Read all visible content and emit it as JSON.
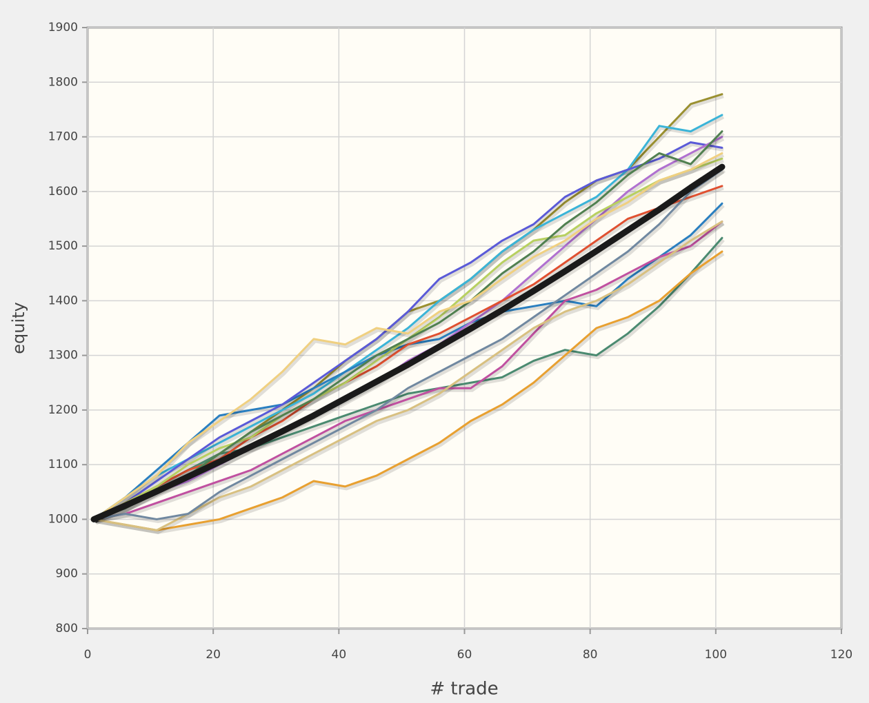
{
  "chart_data": {
    "type": "line",
    "xlabel": "# trade",
    "ylabel": "equity",
    "xlim": [
      0,
      120
    ],
    "xticks": [
      0,
      20,
      40,
      60,
      80,
      100,
      120
    ],
    "ylim": [
      800,
      1900
    ],
    "yticks": [
      800,
      900,
      1000,
      1100,
      1200,
      1300,
      1400,
      1500,
      1600,
      1700,
      1800,
      1900
    ],
    "grid": true,
    "x": [
      1,
      6,
      11,
      16,
      21,
      26,
      31,
      36,
      41,
      46,
      51,
      56,
      61,
      66,
      71,
      76,
      81,
      86,
      91,
      96,
      101
    ],
    "series": [
      {
        "color": "#9a9030",
        "linewidth": 3,
        "values": [
          1000,
          1030,
          1060,
          1090,
          1120,
          1160,
          1200,
          1240,
          1290,
          1330,
          1380,
          1400,
          1440,
          1490,
          1530,
          1580,
          1620,
          1640,
          1700,
          1760,
          1778
        ]
      },
      {
        "color": "#3ab4d8",
        "linewidth": 3,
        "values": [
          1000,
          1040,
          1080,
          1110,
          1140,
          1170,
          1200,
          1230,
          1270,
          1310,
          1350,
          1400,
          1440,
          1490,
          1530,
          1560,
          1590,
          1640,
          1720,
          1710,
          1740
        ]
      },
      {
        "color": "#2a7fc0",
        "linewidth": 3,
        "values": [
          1000,
          1040,
          1090,
          1140,
          1190,
          1200,
          1210,
          1240,
          1270,
          1300,
          1320,
          1330,
          1360,
          1380,
          1390,
          1400,
          1390,
          1440,
          1480,
          1520,
          1578
        ]
      },
      {
        "color": "#5a5ad8",
        "linewidth": 3,
        "values": [
          1000,
          1030,
          1070,
          1110,
          1150,
          1180,
          1210,
          1250,
          1290,
          1330,
          1380,
          1440,
          1470,
          1510,
          1540,
          1590,
          1620,
          1640,
          1660,
          1690,
          1680
        ]
      },
      {
        "color": "#4a8a70",
        "linewidth": 3,
        "values": [
          1000,
          1020,
          1060,
          1090,
          1120,
          1130,
          1150,
          1170,
          1190,
          1210,
          1230,
          1240,
          1250,
          1260,
          1290,
          1310,
          1300,
          1340,
          1390,
          1450,
          1515
        ]
      },
      {
        "color": "#e8a030",
        "linewidth": 3,
        "values": [
          1000,
          990,
          980,
          990,
          1000,
          1020,
          1040,
          1070,
          1060,
          1080,
          1110,
          1140,
          1180,
          1210,
          1250,
          1300,
          1350,
          1370,
          1400,
          1450,
          1490
        ]
      },
      {
        "color": "#c050a0",
        "linewidth": 3,
        "values": [
          1000,
          1010,
          1030,
          1050,
          1070,
          1090,
          1120,
          1150,
          1180,
          1200,
          1220,
          1240,
          1240,
          1280,
          1340,
          1400,
          1420,
          1450,
          1480,
          1500,
          1545
        ]
      },
      {
        "color": "#b070d0",
        "linewidth": 3,
        "values": [
          1000,
          1020,
          1050,
          1070,
          1100,
          1130,
          1160,
          1190,
          1220,
          1250,
          1290,
          1320,
          1360,
          1400,
          1450,
          1500,
          1550,
          1600,
          1640,
          1670,
          1700
        ]
      },
      {
        "color": "#e05030",
        "linewidth": 3,
        "values": [
          1000,
          1030,
          1060,
          1090,
          1110,
          1150,
          1180,
          1220,
          1250,
          1280,
          1320,
          1340,
          1370,
          1400,
          1430,
          1470,
          1510,
          1550,
          1570,
          1590,
          1610
        ]
      },
      {
        "color": "#b8d060",
        "linewidth": 3,
        "values": [
          1000,
          1030,
          1060,
          1100,
          1130,
          1150,
          1190,
          1220,
          1250,
          1290,
          1330,
          1370,
          1420,
          1470,
          1510,
          1520,
          1560,
          1590,
          1620,
          1640,
          1660
        ]
      },
      {
        "color": "#d8c080",
        "linewidth": 3,
        "values": [
          1000,
          990,
          980,
          1010,
          1040,
          1060,
          1090,
          1120,
          1150,
          1180,
          1200,
          1230,
          1270,
          1310,
          1350,
          1380,
          1400,
          1430,
          1470,
          1510,
          1545
        ]
      },
      {
        "color": "#508050",
        "linewidth": 3,
        "values": [
          1000,
          1020,
          1050,
          1080,
          1120,
          1160,
          1190,
          1220,
          1260,
          1300,
          1330,
          1360,
          1400,
          1450,
          1490,
          1540,
          1580,
          1630,
          1670,
          1650,
          1710
        ]
      },
      {
        "color": "#f0d080",
        "linewidth": 3,
        "values": [
          1000,
          1040,
          1080,
          1140,
          1180,
          1220,
          1270,
          1330,
          1320,
          1350,
          1340,
          1380,
          1400,
          1440,
          1480,
          1510,
          1550,
          1580,
          1620,
          1640,
          1670
        ]
      },
      {
        "color": "#7088a0",
        "linewidth": 3,
        "values": [
          1000,
          1010,
          1000,
          1010,
          1050,
          1080,
          1110,
          1140,
          1170,
          1200,
          1240,
          1270,
          1300,
          1330,
          1370,
          1410,
          1450,
          1490,
          1540,
          1600,
          1640
        ]
      },
      {
        "color": "#1a1a1a",
        "linewidth": 9,
        "values": [
          1000,
          1025,
          1051,
          1078,
          1105,
          1133,
          1161,
          1190,
          1221,
          1252,
          1283,
          1316,
          1349,
          1383,
          1418,
          1454,
          1491,
          1529,
          1567,
          1607,
          1645
        ]
      }
    ]
  }
}
